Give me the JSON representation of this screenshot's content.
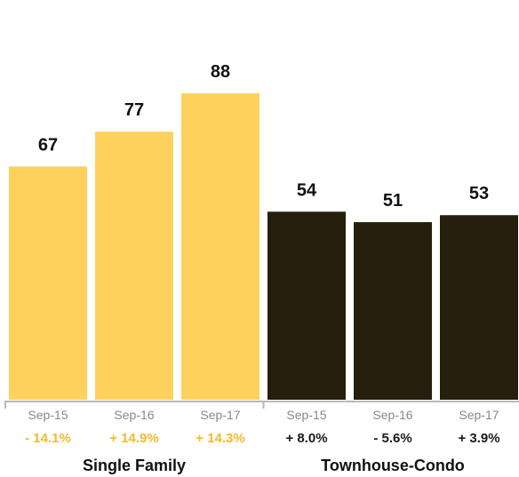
{
  "chart_data": {
    "type": "bar",
    "ylim": [
      0,
      100
    ],
    "groups": [
      {
        "name": "Single Family",
        "color": "#FDD25C",
        "change_color": "#F5B82E",
        "categories": [
          "Sep-15",
          "Sep-16",
          "Sep-17"
        ],
        "values": [
          67,
          77,
          88
        ],
        "changes": [
          "- 14.1%",
          "+ 14.9%",
          "+ 14.3%"
        ]
      },
      {
        "name": "Townhouse-Condo",
        "color": "#261F0E",
        "change_color": "#1A1A1A",
        "categories": [
          "Sep-15",
          "Sep-16",
          "Sep-17"
        ],
        "values": [
          54,
          51,
          53
        ],
        "changes": [
          "+ 8.0%",
          "- 5.6%",
          "+ 3.9%"
        ]
      }
    ],
    "axis_color": "#B8B8B8",
    "grid": false,
    "legend": "none"
  }
}
